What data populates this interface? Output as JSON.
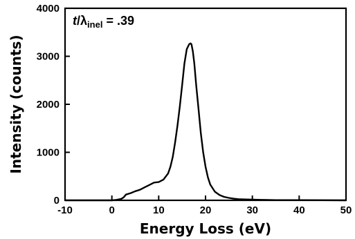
{
  "chart_data": {
    "type": "line",
    "xlabel": "Energy Loss (eV)",
    "ylabel": "Intensity (counts)",
    "xlim": [
      -10,
      50
    ],
    "ylim": [
      0,
      4000
    ],
    "xticks": [
      "-10",
      "0",
      "10",
      "20",
      "30",
      "40",
      "50"
    ],
    "yticks": [
      "0",
      "1000",
      "2000",
      "3000",
      "4000"
    ],
    "grid": false,
    "annotation": {
      "t": "t",
      "slash": "/",
      "lambda": "λ",
      "subscript": "inel",
      "rest": " = .39"
    },
    "series": [
      {
        "x": [
          -10,
          0,
          1.0,
          2.0,
          2.5,
          3.0,
          4.0,
          5.0,
          6.0,
          7.0,
          8.0,
          9.0,
          10.0,
          11.0,
          12.0,
          12.5,
          13.0,
          13.5,
          14.0,
          14.5,
          15.0,
          15.5,
          16.0,
          16.5,
          16.8,
          17.0,
          17.3,
          17.6,
          18.0,
          18.5,
          19.0,
          19.5,
          20.0,
          20.5,
          21.0,
          22.0,
          23.0,
          24.0,
          25.0,
          26.0,
          27.0,
          28.0,
          30.0,
          32.0,
          35.0,
          40.0,
          45.0,
          50.0
        ],
        "y": [
          0,
          0,
          10,
          30,
          60,
          120,
          150,
          190,
          220,
          270,
          320,
          370,
          380,
          430,
          560,
          700,
          900,
          1200,
          1550,
          1950,
          2400,
          2850,
          3150,
          3250,
          3270,
          3250,
          3100,
          2850,
          2400,
          1900,
          1400,
          1000,
          700,
          480,
          330,
          180,
          110,
          70,
          50,
          35,
          25,
          20,
          15,
          10,
          5,
          5,
          3,
          0
        ]
      }
    ]
  }
}
